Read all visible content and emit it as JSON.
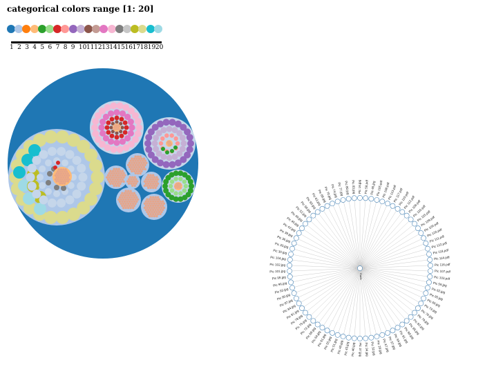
{
  "title": "categorical colors range [1: 20]",
  "palette": [
    "#1f77b4",
    "#aec7e8",
    "#ff7f0e",
    "#ffbb78",
    "#2ca02c",
    "#98df8a",
    "#d62728",
    "#ff9896",
    "#9467bd",
    "#c5b0d5",
    "#8c564b",
    "#c49c94",
    "#e377c2",
    "#f7b6d2",
    "#7f7f7f",
    "#c7c7c7",
    "#bcbd22",
    "#dbdb8d",
    "#17becf",
    "#9edae5"
  ],
  "ticks": [
    "1",
    "2",
    "3",
    "4",
    "5",
    "6",
    "7",
    "8",
    "9",
    "10",
    "11",
    "12",
    "13",
    "14",
    "15",
    "16",
    "17",
    "18",
    "19",
    "20"
  ],
  "tree": {
    "center_label": "Earth",
    "leaves": [
      "Pic 16.jpg",
      "Pic 58.pdf",
      "Pic 46.jpg",
      "Pic 105.pdf",
      "Pic 108.pdf",
      "Pic 113.pdf",
      "Pic 117.pdf",
      "Pic 119.pdf",
      "Pic 112.pdf",
      "Pic 106.pdf",
      "Pic 110.pdf",
      "Pic 115.pdf",
      "Pic 109.pdf",
      "Pic 100.pdf",
      "Pic 120.pdf",
      "Pic 111.pdf",
      "Pic 122.pdf",
      "Pic 118.pdf",
      "Pic 114.pdf",
      "Pic 116.pdf",
      "Pic 107.pdf",
      "Pic 103.pdf",
      "Pic 59.jpg",
      "Pic 62.jpg",
      "Pic 65.jpg",
      "Pic 69.jpg",
      "Pic 73.jpg",
      "Pic 76.jpg",
      "Pic 79.jpg",
      "Pic 82.jpg",
      "Pic 85.jpg",
      "Pic 88.jpg",
      "Pic 91.jpg",
      "Pic 94.jpg",
      "Pic 97.jpg",
      "Pic 67.jpg",
      "Pic 29.jpg",
      "Pic 32.jpg",
      "Pic 34.jpg",
      "Pic 37.jpg",
      "Pic 40.jpg",
      "Pic 43.jpg",
      "Pic 48.jpg",
      "Pic 51.jpg",
      "Pic 55.jpg",
      "Pic 61.jpg",
      "Pic 64.jpg",
      "Pic 68.jpg",
      "Pic 72.jpg",
      "Pic 75.jpg",
      "Pic 78.jpg",
      "Pic 81.jpg",
      "Pic 84.jpg",
      "Pic 87.jpg",
      "Pic 90.jpg",
      "Pic 93.jpg",
      "Pic 96.jpg",
      "Pic 99.jpg",
      "Pic 101.jpg",
      "Pic 102.jpg",
      "Pic 104.jpg",
      "Pic 30.jpg",
      "Pic 33.jpg",
      "Pic 36.jpg",
      "Pic 39.jpg",
      "Pic 42.jpg",
      "Pic 45.jpg",
      "Pic 49.jpg",
      "Pic 52.jpg",
      "Pic 56.jpg",
      "Pic 60.jpg",
      "Pic 63.jpg",
      "Pic 66.jpg",
      "Pic 70.jpg",
      "Pic 74.jpg",
      "Pic 77.jpg",
      "Pic 80.jpg",
      "Pic 83.jpg"
    ]
  }
}
